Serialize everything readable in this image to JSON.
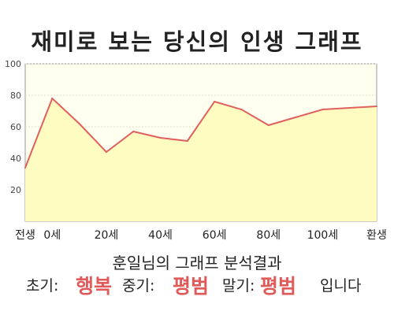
{
  "chart_data": {
    "type": "area",
    "title": "재미로 보는 당신의 인생 그래프",
    "x": [
      -10,
      0,
      10,
      20,
      30,
      40,
      50,
      60,
      70,
      80,
      90,
      100,
      110,
      120
    ],
    "values": [
      34,
      78,
      62,
      44,
      57,
      53,
      51,
      76,
      71,
      61,
      66,
      71,
      72,
      73
    ],
    "xticks": [
      {
        "x": -10,
        "label": "전생"
      },
      {
        "x": 0,
        "label": "0세"
      },
      {
        "x": 20,
        "label": "20세"
      },
      {
        "x": 40,
        "label": "40세"
      },
      {
        "x": 60,
        "label": "60세"
      },
      {
        "x": 80,
        "label": "80세"
      },
      {
        "x": 100,
        "label": "100세"
      },
      {
        "x": 120,
        "label": "환생"
      }
    ],
    "yticks": [
      20,
      40,
      60,
      80,
      100
    ],
    "ylim": [
      0,
      100
    ],
    "xlim": [
      -10,
      120
    ],
    "grid": true,
    "line_color": "#e06060",
    "fill_color": "#fefcc0",
    "plot_bg": "#fffff0"
  },
  "analysis": {
    "title": "훈일님의 그래프 분석결과",
    "early_label": "초기:",
    "early_value": "행복",
    "mid_label": "중기:",
    "mid_value": "평범",
    "late_label": "말기:",
    "late_value": "평범",
    "suffix": "입니다"
  },
  "colors": {
    "highlight": "#e05a5a"
  }
}
